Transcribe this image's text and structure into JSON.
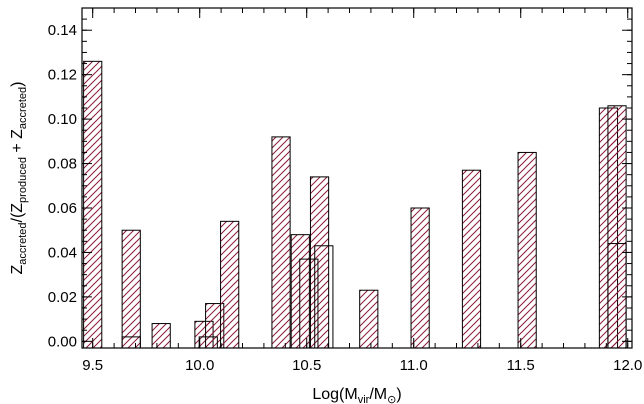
{
  "chart_data": {
    "type": "bar",
    "title": "",
    "xlabel": {
      "prefix": "Log(M",
      "sub1": "vir",
      "mid": "/M",
      "sub2": "⊙",
      "suffix": ")"
    },
    "ylabel": {
      "z1": "Z",
      "sub1": "accreted",
      "mid": "/(Z",
      "sub2": "produced",
      "plus": " + Z",
      "sub3": "accreted",
      "suffix": ")"
    },
    "xlim": [
      9.45,
      12.02
    ],
    "ylim": [
      -0.003,
      0.15
    ],
    "xticks": [
      "9.5",
      "10.0",
      "10.5",
      "11.0",
      "11.5",
      "12.0"
    ],
    "xtick_values": [
      9.5,
      10.0,
      10.5,
      11.0,
      11.5,
      12.0
    ],
    "yticks": [
      "0.00",
      "0.02",
      "0.04",
      "0.06",
      "0.08",
      "0.10",
      "0.12",
      "0.14"
    ],
    "ytick_values": [
      0.0,
      0.02,
      0.04,
      0.06,
      0.08,
      0.1,
      0.12,
      0.14
    ],
    "bar_width": 0.085,
    "colors": {
      "hatch": "#8b1a3a",
      "outline": "#000000"
    },
    "series": [
      {
        "hatched": true,
        "x": [
          9.5,
          9.68,
          9.82,
          10.02,
          10.07,
          10.14,
          10.38,
          10.47,
          10.56,
          10.79,
          11.03,
          11.27,
          11.53,
          11.91,
          11.95
        ],
        "values": [
          0.126,
          0.05,
          0.008,
          0.009,
          0.017,
          0.054,
          0.092,
          0.048,
          0.074,
          0.023,
          0.06,
          0.077,
          0.085,
          0.105,
          0.106
        ]
      },
      {
        "hatched": false,
        "x": [
          9.68,
          10.04,
          10.51,
          10.58,
          11.95
        ],
        "values": [
          0.002,
          0.002,
          0.037,
          0.043,
          0.044
        ]
      }
    ]
  }
}
